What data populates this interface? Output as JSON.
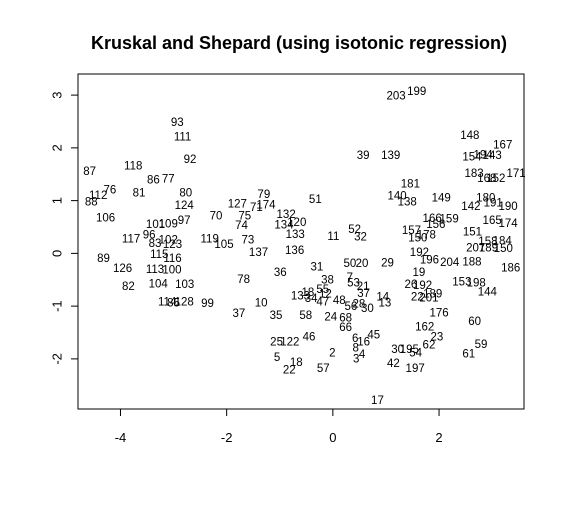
{
  "chart_data": {
    "type": "scatter",
    "title": "Kruskal and Shepard (using isotonic regression)",
    "xlabel": "",
    "ylabel": "",
    "xlim": [
      -4.8,
      3.6
    ],
    "ylim": [
      -2.95,
      3.4
    ],
    "x_ticks": [
      -4,
      -2,
      0,
      2
    ],
    "y_ticks": [
      -2,
      -1,
      0,
      1,
      2,
      3
    ],
    "x_tick_labels": [
      "-4",
      "-2",
      "0",
      "2"
    ],
    "y_tick_labels": [
      "-2",
      "-1",
      "0",
      "1",
      "2",
      "3"
    ],
    "point_marker": "text-label",
    "grid": false,
    "points": [
      {
        "label": "203",
        "x": 1.19,
        "y": 2.99
      },
      {
        "label": "199",
        "x": 1.58,
        "y": 3.08
      },
      {
        "label": "93",
        "x": -2.93,
        "y": 2.49
      },
      {
        "label": "111",
        "x": -2.83,
        "y": 2.22
      },
      {
        "label": "148",
        "x": 2.58,
        "y": 2.24
      },
      {
        "label": "167",
        "x": 3.2,
        "y": 2.06
      },
      {
        "label": "39",
        "x": 0.57,
        "y": 1.86
      },
      {
        "label": "139",
        "x": 1.09,
        "y": 1.86
      },
      {
        "label": "92",
        "x": -2.69,
        "y": 1.79
      },
      {
        "label": "87",
        "x": -4.58,
        "y": 1.56
      },
      {
        "label": "118",
        "x": -3.76,
        "y": 1.67
      },
      {
        "label": "86",
        "x": -3.38,
        "y": 1.4
      },
      {
        "label": "77",
        "x": -3.1,
        "y": 1.42
      },
      {
        "label": "183",
        "x": 2.66,
        "y": 1.52
      },
      {
        "label": "168",
        "x": 2.9,
        "y": 1.43
      },
      {
        "label": "152",
        "x": 3.07,
        "y": 1.43
      },
      {
        "label": "171",
        "x": 3.45,
        "y": 1.52
      },
      {
        "label": "181",
        "x": 1.46,
        "y": 1.32
      },
      {
        "label": "76",
        "x": -4.2,
        "y": 1.21
      },
      {
        "label": "112",
        "x": -4.42,
        "y": 1.11
      },
      {
        "label": "88",
        "x": -4.55,
        "y": 0.98
      },
      {
        "label": "81",
        "x": -3.65,
        "y": 1.15
      },
      {
        "label": "80",
        "x": -2.77,
        "y": 1.15
      },
      {
        "label": "79",
        "x": -1.3,
        "y": 1.13
      },
      {
        "label": "140",
        "x": 1.21,
        "y": 1.1
      },
      {
        "label": "149",
        "x": 2.04,
        "y": 1.06
      },
      {
        "label": "127",
        "x": -1.8,
        "y": 0.95
      },
      {
        "label": "71",
        "x": -1.44,
        "y": 0.88
      },
      {
        "label": "174",
        "x": -1.26,
        "y": 0.93
      },
      {
        "label": "124",
        "x": -2.8,
        "y": 0.92
      },
      {
        "label": "51",
        "x": -0.33,
        "y": 1.03
      },
      {
        "label": "138",
        "x": 1.4,
        "y": 0.98
      },
      {
        "label": "106",
        "x": -4.28,
        "y": 0.68
      },
      {
        "label": "70",
        "x": -2.2,
        "y": 0.72
      },
      {
        "label": "75",
        "x": -1.66,
        "y": 0.72
      },
      {
        "label": "132",
        "x": -0.88,
        "y": 0.75
      },
      {
        "label": "97",
        "x": -2.8,
        "y": 0.63
      },
      {
        "label": "109",
        "x": -3.1,
        "y": 0.57
      },
      {
        "label": "101",
        "x": -3.34,
        "y": 0.56
      },
      {
        "label": "134",
        "x": -0.92,
        "y": 0.55
      },
      {
        "label": "120",
        "x": -0.68,
        "y": 0.59
      },
      {
        "label": "74",
        "x": -1.72,
        "y": 0.54
      },
      {
        "label": "157",
        "x": 1.48,
        "y": 0.44
      },
      {
        "label": "52",
        "x": 0.41,
        "y": 0.46
      },
      {
        "label": "11",
        "x": 0.01,
        "y": 0.33
      },
      {
        "label": "32",
        "x": 0.52,
        "y": 0.32
      },
      {
        "label": "133",
        "x": -0.71,
        "y": 0.37
      },
      {
        "label": "117",
        "x": -3.8,
        "y": 0.28
      },
      {
        "label": "96",
        "x": -3.46,
        "y": 0.36
      },
      {
        "label": "83",
        "x": -3.35,
        "y": 0.2
      },
      {
        "label": "102",
        "x": -3.1,
        "y": 0.26
      },
      {
        "label": "123",
        "x": -3.02,
        "y": 0.18
      },
      {
        "label": "119",
        "x": -2.32,
        "y": 0.28
      },
      {
        "label": "105",
        "x": -2.05,
        "y": 0.18
      },
      {
        "label": "73",
        "x": -1.6,
        "y": 0.26
      },
      {
        "label": "137",
        "x": -1.4,
        "y": 0.03
      },
      {
        "label": "136",
        "x": -0.72,
        "y": 0.06
      },
      {
        "label": "89",
        "x": -4.32,
        "y": -0.09
      },
      {
        "label": "115",
        "x": -3.27,
        "y": -0.01
      },
      {
        "label": "116",
        "x": -3.02,
        "y": -0.09
      },
      {
        "label": "126",
        "x": -3.96,
        "y": -0.28
      },
      {
        "label": "113",
        "x": -3.35,
        "y": -0.3
      },
      {
        "label": "100",
        "x": -3.03,
        "y": -0.31
      },
      {
        "label": "36",
        "x": -0.99,
        "y": -0.35
      },
      {
        "label": "31",
        "x": -0.3,
        "y": -0.25
      },
      {
        "label": "50",
        "x": 0.32,
        "y": -0.18
      },
      {
        "label": "20",
        "x": 0.55,
        "y": -0.18
      },
      {
        "label": "29",
        "x": 1.03,
        "y": -0.17
      },
      {
        "label": "186",
        "x": 3.35,
        "y": -0.27
      },
      {
        "label": "82",
        "x": -3.85,
        "y": -0.62
      },
      {
        "label": "104",
        "x": -3.29,
        "y": -0.57
      },
      {
        "label": "103",
        "x": -2.79,
        "y": -0.58
      },
      {
        "label": "78",
        "x": -1.68,
        "y": -0.49
      },
      {
        "label": "38",
        "x": -0.1,
        "y": -0.5
      },
      {
        "label": "7",
        "x": 0.32,
        "y": -0.45
      },
      {
        "label": "53",
        "x": 0.39,
        "y": -0.55
      },
      {
        "label": "19",
        "x": 1.62,
        "y": -0.35
      },
      {
        "label": "26",
        "x": 1.47,
        "y": -0.58
      },
      {
        "label": "153",
        "x": 2.43,
        "y": -0.53
      },
      {
        "label": "198",
        "x": 2.7,
        "y": -0.55
      },
      {
        "label": "144",
        "x": 2.91,
        "y": -0.72
      },
      {
        "label": "133b",
        "x": -0.61,
        "y": -0.8
      },
      {
        "label": "55",
        "x": -0.19,
        "y": -0.68
      },
      {
        "label": "12",
        "x": -0.14,
        "y": -0.76
      },
      {
        "label": "37",
        "x": 0.58,
        "y": -0.75
      },
      {
        "label": "22",
        "x": 1.59,
        "y": -0.82
      },
      {
        "label": "201",
        "x": 1.81,
        "y": -0.84
      },
      {
        "label": "114",
        "x": -3.12,
        "y": -0.91
      },
      {
        "label": "85",
        "x": -3.0,
        "y": -0.93
      },
      {
        "label": "128",
        "x": -2.8,
        "y": -0.91
      },
      {
        "label": "99",
        "x": -2.36,
        "y": -0.94
      },
      {
        "label": "10",
        "x": -1.35,
        "y": -0.93
      },
      {
        "label": "34",
        "x": -0.41,
        "y": -0.85
      },
      {
        "label": "47",
        "x": -0.19,
        "y": -0.91
      },
      {
        "label": "48",
        "x": 0.12,
        "y": -0.88
      },
      {
        "label": "14",
        "x": 0.94,
        "y": -0.82
      },
      {
        "label": "13",
        "x": 0.98,
        "y": -0.93
      },
      {
        "label": "56",
        "x": 0.34,
        "y": -1.0
      },
      {
        "label": "30",
        "x": 0.65,
        "y": -1.04
      },
      {
        "label": "37b",
        "x": -1.77,
        "y": -1.13
      },
      {
        "label": "35",
        "x": -1.07,
        "y": -1.17
      },
      {
        "label": "58",
        "x": -0.51,
        "y": -1.17
      },
      {
        "label": "24",
        "x": -0.04,
        "y": -1.2
      },
      {
        "label": "68",
        "x": 0.24,
        "y": -1.22
      },
      {
        "label": "176",
        "x": 2.0,
        "y": -1.12
      },
      {
        "label": "60",
        "x": 2.67,
        "y": -1.28
      },
      {
        "label": "66",
        "x": 0.24,
        "y": -1.4
      },
      {
        "label": "162",
        "x": 1.73,
        "y": -1.39
      },
      {
        "label": "45",
        "x": 0.77,
        "y": -1.54
      },
      {
        "label": "25",
        "x": -1.06,
        "y": -1.67
      },
      {
        "label": "122",
        "x": -0.81,
        "y": -1.67
      },
      {
        "label": "46",
        "x": -0.45,
        "y": -1.58
      },
      {
        "label": "16",
        "x": 0.58,
        "y": -1.67
      },
      {
        "label": "23",
        "x": 1.96,
        "y": -1.58
      },
      {
        "label": "62",
        "x": 1.81,
        "y": -1.73
      },
      {
        "label": "59",
        "x": 2.79,
        "y": -1.72
      },
      {
        "label": "30b",
        "x": 1.22,
        "y": -1.81
      },
      {
        "label": "195",
        "x": 1.44,
        "y": -1.81
      },
      {
        "label": "54",
        "x": 1.56,
        "y": -1.88
      },
      {
        "label": "61",
        "x": 2.56,
        "y": -1.9
      },
      {
        "label": "5",
        "x": -1.05,
        "y": -1.96
      },
      {
        "label": "2",
        "x": -0.01,
        "y": -1.88
      },
      {
        "label": "4",
        "x": 0.55,
        "y": -1.91
      },
      {
        "label": "3",
        "x": 0.44,
        "y": -1.99
      },
      {
        "label": "18",
        "x": -0.69,
        "y": -2.06
      },
      {
        "label": "22b",
        "x": -0.82,
        "y": -2.2
      },
      {
        "label": "57",
        "x": -0.18,
        "y": -2.17
      },
      {
        "label": "42",
        "x": 1.14,
        "y": -2.08
      },
      {
        "label": "197",
        "x": 1.55,
        "y": -2.17
      },
      {
        "label": "17",
        "x": 0.84,
        "y": -2.78
      },
      {
        "label": "154",
        "x": 2.62,
        "y": 1.84
      },
      {
        "label": "194",
        "x": 2.83,
        "y": 1.87
      },
      {
        "label": "143",
        "x": 3.0,
        "y": 1.86
      },
      {
        "label": "142",
        "x": 2.6,
        "y": 0.9
      },
      {
        "label": "180",
        "x": 2.88,
        "y": 1.06
      },
      {
        "label": "191",
        "x": 3.02,
        "y": 0.96
      },
      {
        "label": "190",
        "x": 3.3,
        "y": 0.9
      },
      {
        "label": "165",
        "x": 3.0,
        "y": 0.63
      },
      {
        "label": "174b",
        "x": 3.3,
        "y": 0.58
      },
      {
        "label": "166",
        "x": 1.87,
        "y": 0.67
      },
      {
        "label": "159",
        "x": 2.19,
        "y": 0.66
      },
      {
        "label": "156",
        "x": 1.94,
        "y": 0.56
      },
      {
        "label": "150",
        "x": 1.6,
        "y": 0.3
      },
      {
        "label": "178",
        "x": 1.76,
        "y": 0.36
      },
      {
        "label": "151",
        "x": 2.63,
        "y": 0.41
      },
      {
        "label": "158",
        "x": 2.92,
        "y": 0.23
      },
      {
        "label": "184",
        "x": 3.19,
        "y": 0.24
      },
      {
        "label": "207",
        "x": 2.69,
        "y": 0.11
      },
      {
        "label": "189",
        "x": 2.93,
        "y": 0.11
      },
      {
        "label": "150b",
        "x": 3.21,
        "y": 0.1
      },
      {
        "label": "192",
        "x": 1.63,
        "y": 0.03
      },
      {
        "label": "196",
        "x": 1.82,
        "y": -0.12
      },
      {
        "label": "204",
        "x": 2.2,
        "y": -0.16
      },
      {
        "label": "188",
        "x": 2.62,
        "y": -0.15
      },
      {
        "label": "192b",
        "x": 1.69,
        "y": -0.6
      },
      {
        "label": "189b",
        "x": 1.88,
        "y": -0.76
      },
      {
        "label": "18b",
        "x": -0.47,
        "y": -0.73
      },
      {
        "label": "21",
        "x": 0.57,
        "y": -0.62
      },
      {
        "label": "28",
        "x": 0.49,
        "y": -0.95
      },
      {
        "label": "6",
        "x": 0.42,
        "y": -1.6
      },
      {
        "label": "8",
        "x": 0.43,
        "y": -1.78
      }
    ]
  }
}
